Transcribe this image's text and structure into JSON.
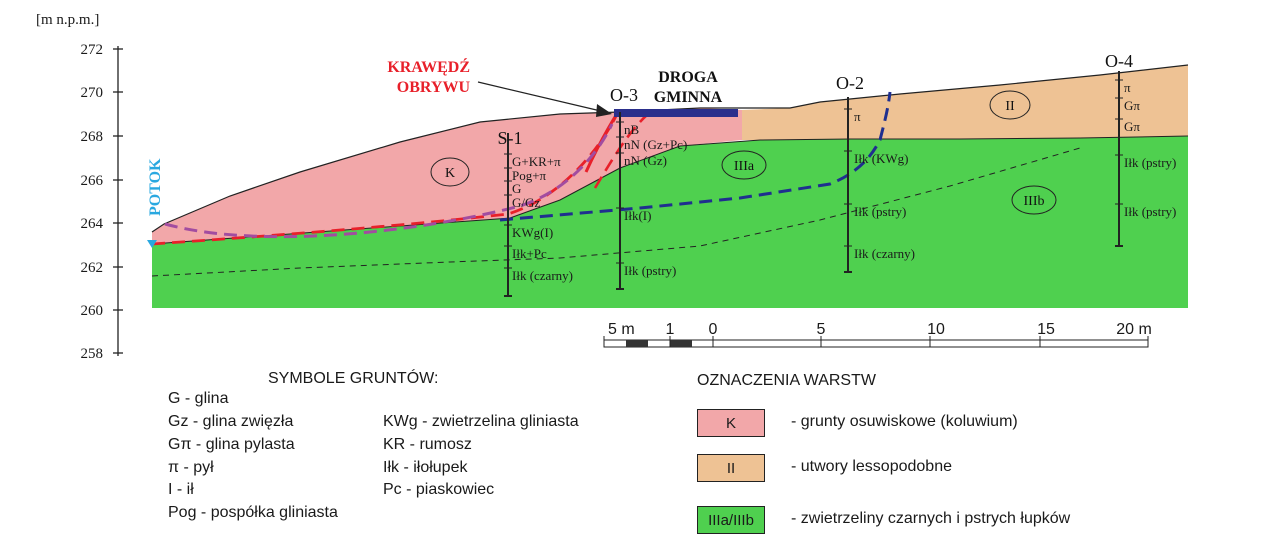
{
  "y_unit": "[m n.p.m.]",
  "y_ticks": [
    "272",
    "270",
    "268",
    "266",
    "264",
    "262",
    "260",
    "258"
  ],
  "scale_bar": [
    "5 m",
    "1",
    "0",
    "5",
    "10",
    "15",
    "20 m"
  ],
  "labels": {
    "potok": "POTOK",
    "krawedz_1": "KRAWĘDŹ",
    "krawedz_2": "OBRYWU",
    "droga_1": "DROGA",
    "droga_2": "GMINNA"
  },
  "boreholes": [
    {
      "name": "S-1",
      "layers": [
        "G+KR+π",
        "Pog+π",
        "G",
        "G/Gz",
        "KWg(I)",
        "Iłk+Pc",
        "Iłk (czarny)"
      ]
    },
    {
      "name": "O-3",
      "layers": [
        "nB",
        "nN (Gz+Pc)",
        "nN (Gz)",
        "Iłk(I)",
        "Iłk (pstry)"
      ]
    },
    {
      "name": "O-2",
      "layers": [
        "π",
        "Iłk (KWg)",
        "Iłk (pstry)",
        "Iłk (czarny)"
      ]
    },
    {
      "name": "O-4",
      "layers": [
        "π",
        "Gπ",
        "Gπ",
        "Iłk (pstry)",
        "Iłk (pstry)"
      ]
    }
  ],
  "zones": [
    "K",
    "IIIa",
    "II",
    "IIIb"
  ],
  "soil_symbols": {
    "title": "SYMBOLE GRUNTÓW:",
    "col1": [
      "G - glina",
      "Gz - glina zwięzła",
      "Gπ - glina pylasta",
      "π - pył",
      "I - ił",
      "Pog - pospółka gliniasta"
    ],
    "col2": [
      "KWg - zwietrzelina gliniasta",
      "KR - rumosz",
      "Iłk - iłołupek",
      "Pc - piaskowiec"
    ]
  },
  "layer_legend": {
    "title": "OZNACZENIA WARSTW",
    "items": [
      {
        "code": "K",
        "desc": "- grunty osuwiskowe (koluwium)",
        "color": "#f2a7a9"
      },
      {
        "code": "II",
        "desc": "- utwory lessopodobne",
        "color": "#eec294"
      },
      {
        "code": "IIIa/IIIb",
        "desc": "- zwietrzeliny czarnych i pstrych łupków",
        "color": "#4fd04f"
      }
    ]
  },
  "colors": {
    "pink": "#f2a7a9",
    "tan": "#eec294",
    "green": "#4fd04f",
    "red_line": "#e8202a",
    "purple_line": "#a24ca0",
    "navy_line": "#1f2f8f",
    "road": "#2b2f8c",
    "water": "#29a8e0"
  }
}
